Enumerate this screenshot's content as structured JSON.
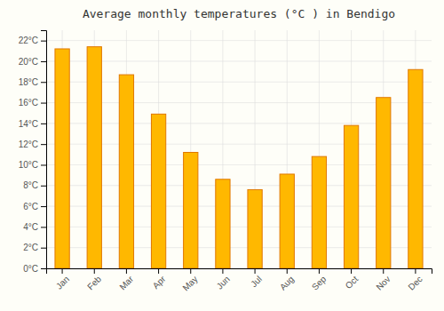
{
  "chart_data": {
    "type": "bar",
    "title": "Average monthly temperatures (°C ) in Bendigo",
    "categories": [
      "Jan",
      "Feb",
      "Mar",
      "Apr",
      "May",
      "Jun",
      "Jul",
      "Aug",
      "Sep",
      "Oct",
      "Nov",
      "Dec"
    ],
    "values": [
      21.2,
      21.4,
      18.7,
      14.9,
      11.2,
      8.6,
      7.6,
      9.1,
      10.8,
      13.8,
      16.5,
      19.2
    ],
    "color": "#FFB800",
    "ylim": [
      0,
      23
    ],
    "yticks": [
      {
        "value": 0,
        "label": "0°C"
      },
      {
        "value": 2,
        "label": "2°C"
      },
      {
        "value": 4,
        "label": "4°C"
      },
      {
        "value": 6,
        "label": "6°C"
      },
      {
        "value": 8,
        "label": "8°C"
      },
      {
        "value": 10,
        "label": "10°C"
      },
      {
        "value": 12,
        "label": "12°C"
      },
      {
        "value": 14,
        "label": "14°C"
      },
      {
        "value": 16,
        "label": "16°C"
      },
      {
        "value": 18,
        "label": "18°C"
      },
      {
        "value": 20,
        "label": "20°C"
      },
      {
        "value": 22,
        "label": "22°C"
      }
    ],
    "grid": true
  }
}
